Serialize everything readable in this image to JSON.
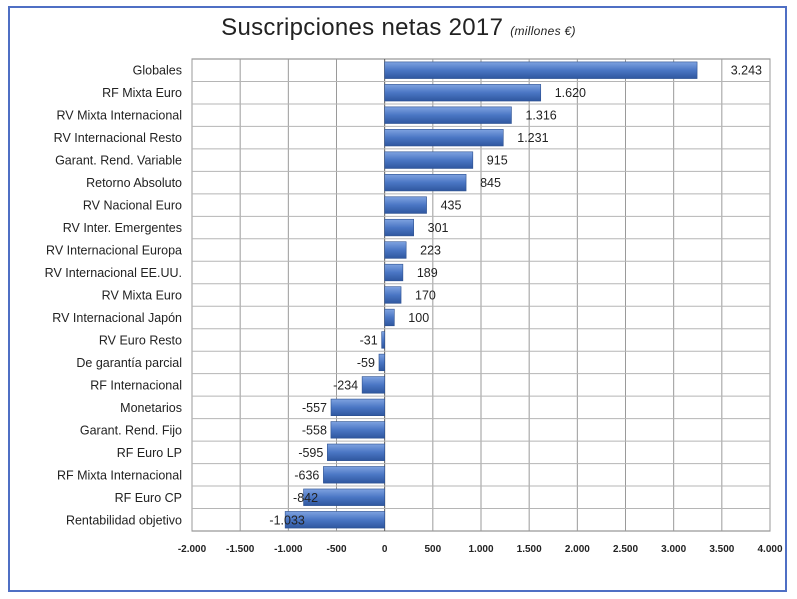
{
  "chart_data": {
    "type": "bar",
    "orientation": "horizontal",
    "title": "Suscripciones netas 2017",
    "subtitle": "(millones €)",
    "categories": [
      "Globales",
      "RF Mixta Euro",
      "RV Mixta Internacional",
      "RV Internacional Resto",
      "Garant. Rend. Variable",
      "Retorno Absoluto",
      "RV Nacional Euro",
      "RV Inter. Emergentes",
      "RV Internacional Europa",
      "RV Internacional EE.UU.",
      "RV Mixta Euro",
      "RV Internacional Japón",
      "RV Euro Resto",
      "De garantía parcial",
      "RF Internacional",
      "Monetarios",
      "Garant. Rend. Fijo",
      "RF Euro LP",
      "RF Mixta Internacional",
      "RF Euro CP",
      "Rentabilidad objetivo"
    ],
    "values": [
      3243,
      1620,
      1316,
      1231,
      915,
      845,
      435,
      301,
      223,
      189,
      170,
      100,
      -31,
      -59,
      -234,
      -557,
      -558,
      -595,
      -636,
      -842,
      -1033
    ],
    "value_labels": [
      "3.243",
      "1.620",
      "1.316",
      "1.231",
      "915",
      "845",
      "435",
      "301",
      "223",
      "189",
      "170",
      "100",
      "-31",
      "-59",
      "-234",
      "-557",
      "-558",
      "-595",
      "-636",
      "-842",
      "-1.033"
    ],
    "xlim": [
      -2000,
      4000
    ],
    "xticks": [
      -2000,
      -1500,
      -1000,
      -500,
      0,
      500,
      1000,
      1500,
      2000,
      2500,
      3000,
      3500,
      4000
    ],
    "xtick_labels": [
      "-2.000",
      "-1.500",
      "-1.000",
      "-500",
      "0",
      "500",
      "1.000",
      "1.500",
      "2.000",
      "2.500",
      "3.000",
      "3.500",
      "4.000"
    ],
    "grid": true,
    "bar_color": "#4a76c4",
    "frame_color": "#4f6fc4"
  }
}
